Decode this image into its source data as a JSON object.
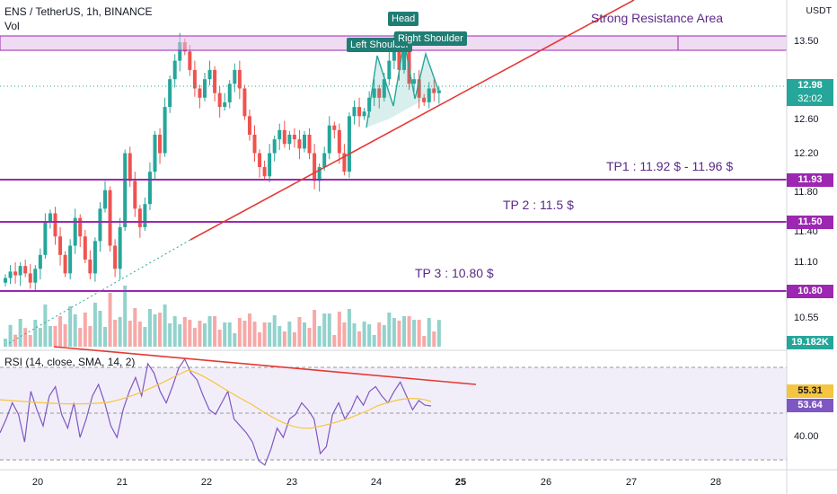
{
  "header": {
    "symbol": "ENS / TetherUS, 1h, BINANCE",
    "volume_label": "Vol",
    "rsi_label": "RSI (14, close, SMA, 14, 2)",
    "currency": "USDT"
  },
  "annotations": {
    "strong_resistance": "Strong Resistance Area",
    "tp1": "TP1 : 11.92 $ - 11.96 $",
    "tp2": "TP 2 : 11.5 $",
    "tp3": "TP 3 : 10.80 $",
    "head": "Head",
    "left_shoulder": "Left Shoulder",
    "right_shoulder": "Right Shoulder"
  },
  "price_axis": {
    "ticks": [
      "13.50",
      "12.60",
      "12.20",
      "11.80",
      "11.40",
      "11.10",
      "10.55"
    ],
    "current_price": "12.98",
    "countdown": "32:02",
    "volume_value": "19.182K",
    "levels": [
      "11.93",
      "11.50",
      "10.80"
    ]
  },
  "rsi_axis": {
    "ticks": [
      "40.00"
    ],
    "rsi_ma": "55.31",
    "rsi_value": "53.64"
  },
  "time_axis": {
    "labels": [
      "20",
      "21",
      "22",
      "23",
      "24",
      "25",
      "26",
      "27",
      "28"
    ]
  },
  "colors": {
    "up": "#26a69a",
    "down": "#ef5350",
    "purple": "#9c27b0",
    "trend": "#e53935",
    "rsi_line": "#7e57c2",
    "rsi_ma": "#f5c542",
    "pattern": "#26a69a"
  },
  "chart_data": {
    "type": "candlestick",
    "symbol": "ENS / TetherUS",
    "interval": "1h",
    "exchange": "BINANCE",
    "close": [
      10.95,
      11.02,
      10.98,
      11.08,
      11.0,
      10.9,
      11.05,
      11.2,
      11.55,
      11.65,
      11.4,
      11.2,
      11.0,
      11.3,
      11.6,
      11.4,
      11.15,
      11.0,
      11.35,
      11.7,
      11.9,
      11.3,
      11.05,
      11.5,
      12.3,
      12.0,
      11.7,
      11.5,
      11.75,
      12.1,
      12.5,
      12.3,
      12.8,
      13.1,
      13.3,
      13.5,
      13.4,
      13.2,
      13.0,
      12.9,
      13.1,
      13.2,
      12.95,
      12.8,
      12.85,
      13.05,
      13.2,
      13.0,
      12.7,
      12.5,
      12.3,
      12.15,
      12.05,
      12.3,
      12.45,
      12.55,
      12.4,
      12.5,
      12.45,
      12.35,
      12.5,
      12.3,
      12.0,
      12.15,
      12.3,
      12.6,
      12.55,
      12.3,
      12.1,
      12.7,
      12.8,
      12.7,
      12.75,
      12.9,
      13.0,
      12.9,
      13.1,
      13.3,
      13.55,
      13.2,
      13.4,
      13.05,
      13.1,
      12.9,
      12.85,
      13.0,
      12.95,
      12.98
    ],
    "volume_shown": "19.182K",
    "levels": [
      {
        "label": "TP1 : 11.92 $ - 11.96 $",
        "price": 11.93
      },
      {
        "label": "TP 2 : 11.5 $",
        "price": 11.5
      },
      {
        "label": "TP 3 : 10.80 $",
        "price": 10.8
      }
    ],
    "resistance_area": {
      "label": "Strong Resistance Area",
      "from": 13.42,
      "to": 13.57
    },
    "rsi": [
      42,
      48,
      55,
      50,
      38,
      60,
      52,
      45,
      58,
      62,
      50,
      44,
      55,
      40,
      48,
      58,
      63,
      55,
      45,
      40,
      52,
      60,
      66,
      58,
      72,
      68,
      60,
      55,
      62,
      70,
      74,
      68,
      65,
      58,
      52,
      50,
      55,
      60,
      48,
      45,
      42,
      38,
      30,
      28,
      35,
      44,
      40,
      48,
      50,
      55,
      52,
      48,
      33,
      36,
      50,
      55,
      48,
      52,
      58,
      54,
      60,
      62,
      58,
      55,
      60,
      64,
      58,
      52,
      56,
      54,
      53.64
    ],
    "rsi_current": 53.64,
    "rsi_ma_current": 55.31
  }
}
